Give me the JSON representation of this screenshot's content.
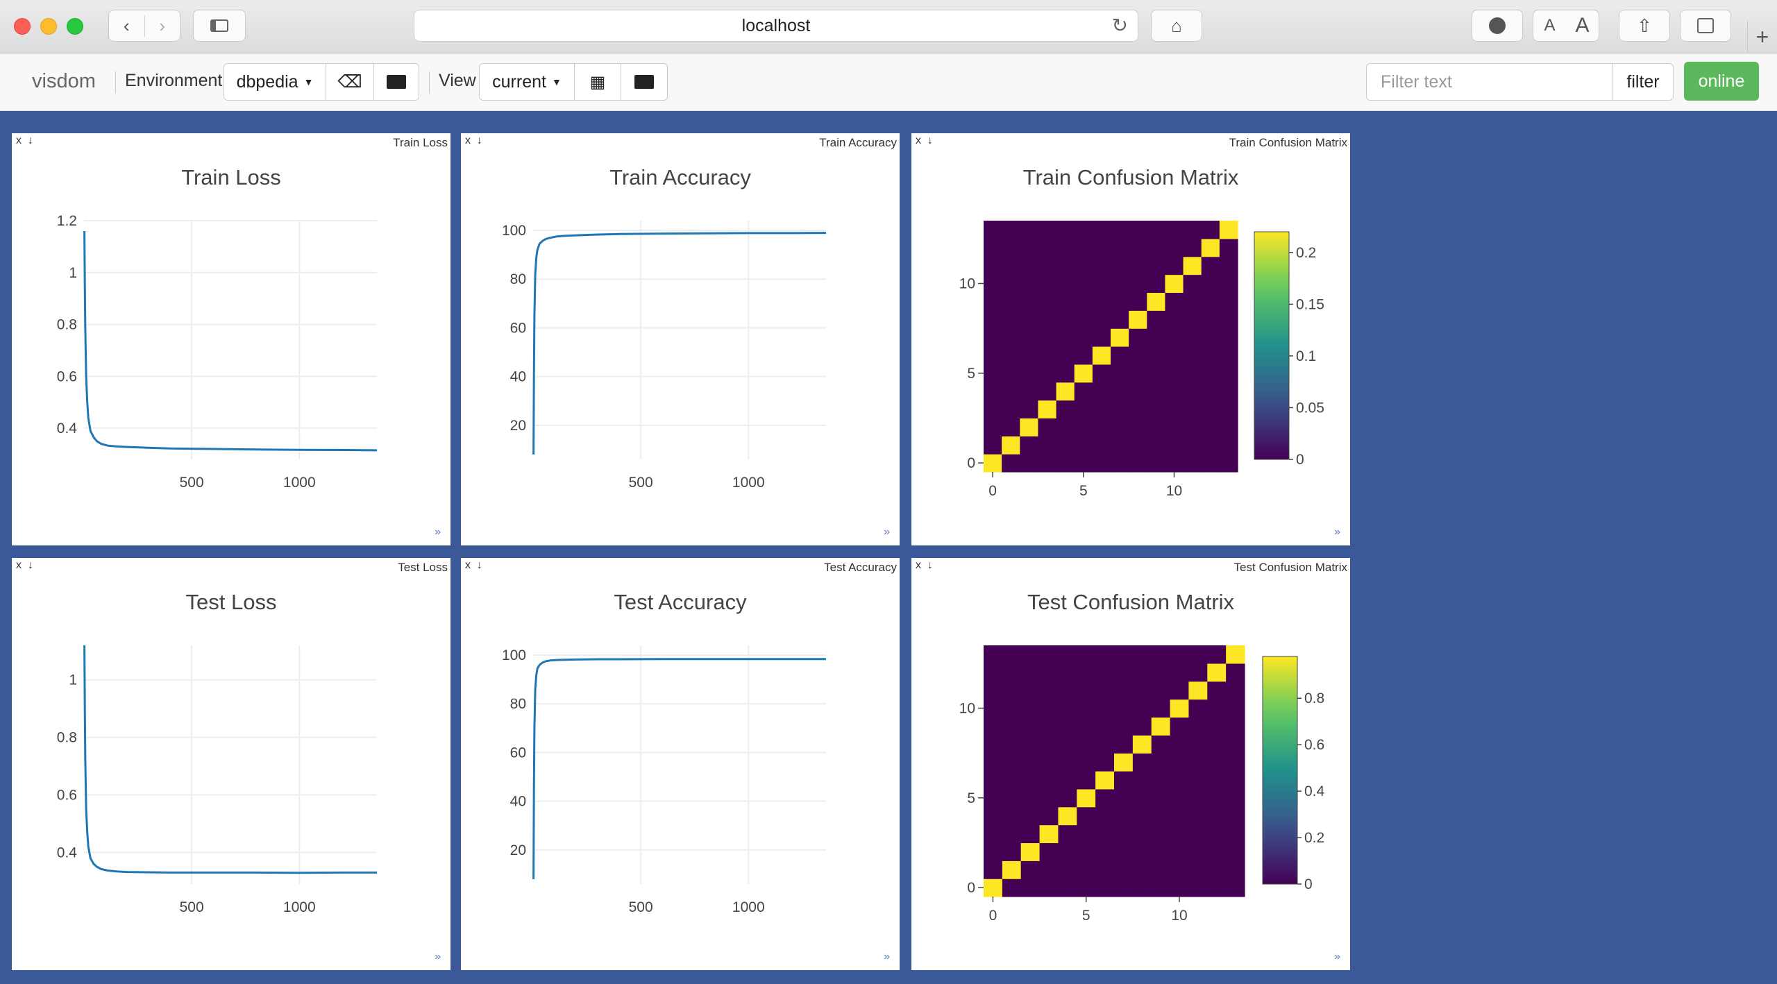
{
  "browser": {
    "url": "localhost",
    "plus_label": "+"
  },
  "toolbar": {
    "brand": "visdom",
    "environment_label": "Environment",
    "environment_value": "dbpedia",
    "view_label": "View",
    "view_value": "current",
    "filter_placeholder": "Filter text",
    "filter_button": "filter",
    "status": "online"
  },
  "pane_controls": {
    "close": "x",
    "download": "↓",
    "resize": "»"
  },
  "colors": {
    "background": "#3b5998",
    "line": "#1f77b4",
    "online": "#5cb85c"
  },
  "chart_data": [
    {
      "id": "train-loss",
      "type": "line",
      "pane_title": "Train Loss",
      "title": "Train Loss",
      "x_ticks": [
        500,
        1000
      ],
      "y_ticks": [
        "0.4",
        "0.6",
        "0.8",
        "1",
        "1.2"
      ],
      "xlim": [
        0,
        1360
      ],
      "ylim": [
        0.28,
        1.2
      ],
      "series": [
        {
          "x": [
            2,
            4,
            6,
            10,
            15,
            20,
            30,
            45,
            60,
            80,
            110,
            150,
            200,
            300,
            400,
            600,
            800,
            1000,
            1200,
            1360
          ],
          "y": [
            1.16,
            0.95,
            0.78,
            0.6,
            0.5,
            0.44,
            0.39,
            0.365,
            0.35,
            0.34,
            0.333,
            0.33,
            0.328,
            0.325,
            0.322,
            0.32,
            0.318,
            0.317,
            0.316,
            0.315
          ]
        }
      ]
    },
    {
      "id": "train-accuracy",
      "type": "line",
      "pane_title": "Train Accuracy",
      "title": "Train Accuracy",
      "x_ticks": [
        500,
        1000
      ],
      "y_ticks": [
        "20",
        "40",
        "60",
        "80",
        "100"
      ],
      "xlim": [
        0,
        1360
      ],
      "ylim": [
        6,
        104
      ],
      "series": [
        {
          "x": [
            2,
            4,
            6,
            10,
            15,
            20,
            30,
            45,
            60,
            80,
            110,
            150,
            200,
            300,
            400,
            600,
            800,
            1000,
            1200,
            1360
          ],
          "y": [
            8,
            40,
            65,
            82,
            89,
            92,
            94.5,
            95.8,
            96.5,
            97,
            97.5,
            97.8,
            98,
            98.3,
            98.5,
            98.7,
            98.8,
            98.9,
            98.9,
            99
          ]
        }
      ]
    },
    {
      "id": "train-confusion",
      "type": "heatmap",
      "pane_title": "Train Confusion Matrix",
      "title": "Train Confusion Matrix",
      "size": 14,
      "diagonal": 0.22,
      "zlim": [
        0,
        0.22
      ],
      "x_ticks": [
        0,
        5,
        10
      ],
      "y_ticks": [
        0,
        5,
        10
      ],
      "colorbar_ticks": [
        "0",
        "0.05",
        "0.1",
        "0.15",
        "0.2"
      ]
    },
    {
      "id": "test-loss",
      "type": "line",
      "pane_title": "Test Loss",
      "title": "Test Loss",
      "x_ticks": [
        500,
        1000
      ],
      "y_ticks": [
        "0.4",
        "0.6",
        "0.8",
        "1"
      ],
      "xlim": [
        0,
        1360
      ],
      "ylim": [
        0.29,
        1.12
      ],
      "series": [
        {
          "x": [
            2,
            4,
            6,
            10,
            15,
            20,
            30,
            45,
            60,
            80,
            110,
            150,
            200,
            300,
            400,
            600,
            800,
            1000,
            1200,
            1360
          ],
          "y": [
            1.12,
            0.9,
            0.72,
            0.55,
            0.47,
            0.42,
            0.38,
            0.36,
            0.35,
            0.342,
            0.337,
            0.334,
            0.332,
            0.331,
            0.33,
            0.33,
            0.33,
            0.329,
            0.33,
            0.33
          ]
        }
      ]
    },
    {
      "id": "test-accuracy",
      "type": "line",
      "pane_title": "Test Accuracy",
      "title": "Test Accuracy",
      "x_ticks": [
        500,
        1000
      ],
      "y_ticks": [
        "20",
        "40",
        "60",
        "80",
        "100"
      ],
      "xlim": [
        0,
        1360
      ],
      "ylim": [
        6,
        104
      ],
      "series": [
        {
          "x": [
            2,
            4,
            6,
            10,
            15,
            20,
            30,
            45,
            60,
            80,
            110,
            150,
            200,
            300,
            400,
            600,
            800,
            1000,
            1200,
            1360
          ],
          "y": [
            8,
            45,
            70,
            86,
            92,
            94.5,
            96,
            97,
            97.5,
            97.8,
            98,
            98.1,
            98.2,
            98.3,
            98.3,
            98.4,
            98.4,
            98.4,
            98.4,
            98.4
          ]
        }
      ]
    },
    {
      "id": "test-confusion",
      "type": "heatmap",
      "pane_title": "Test Confusion Matrix",
      "title": "Test Confusion Matrix",
      "size": 14,
      "diagonal": 0.98,
      "zlim": [
        0,
        0.98
      ],
      "x_ticks": [
        0,
        5,
        10
      ],
      "y_ticks": [
        0,
        5,
        10
      ],
      "colorbar_ticks": [
        "0",
        "0.2",
        "0.4",
        "0.6",
        "0.8"
      ]
    }
  ]
}
